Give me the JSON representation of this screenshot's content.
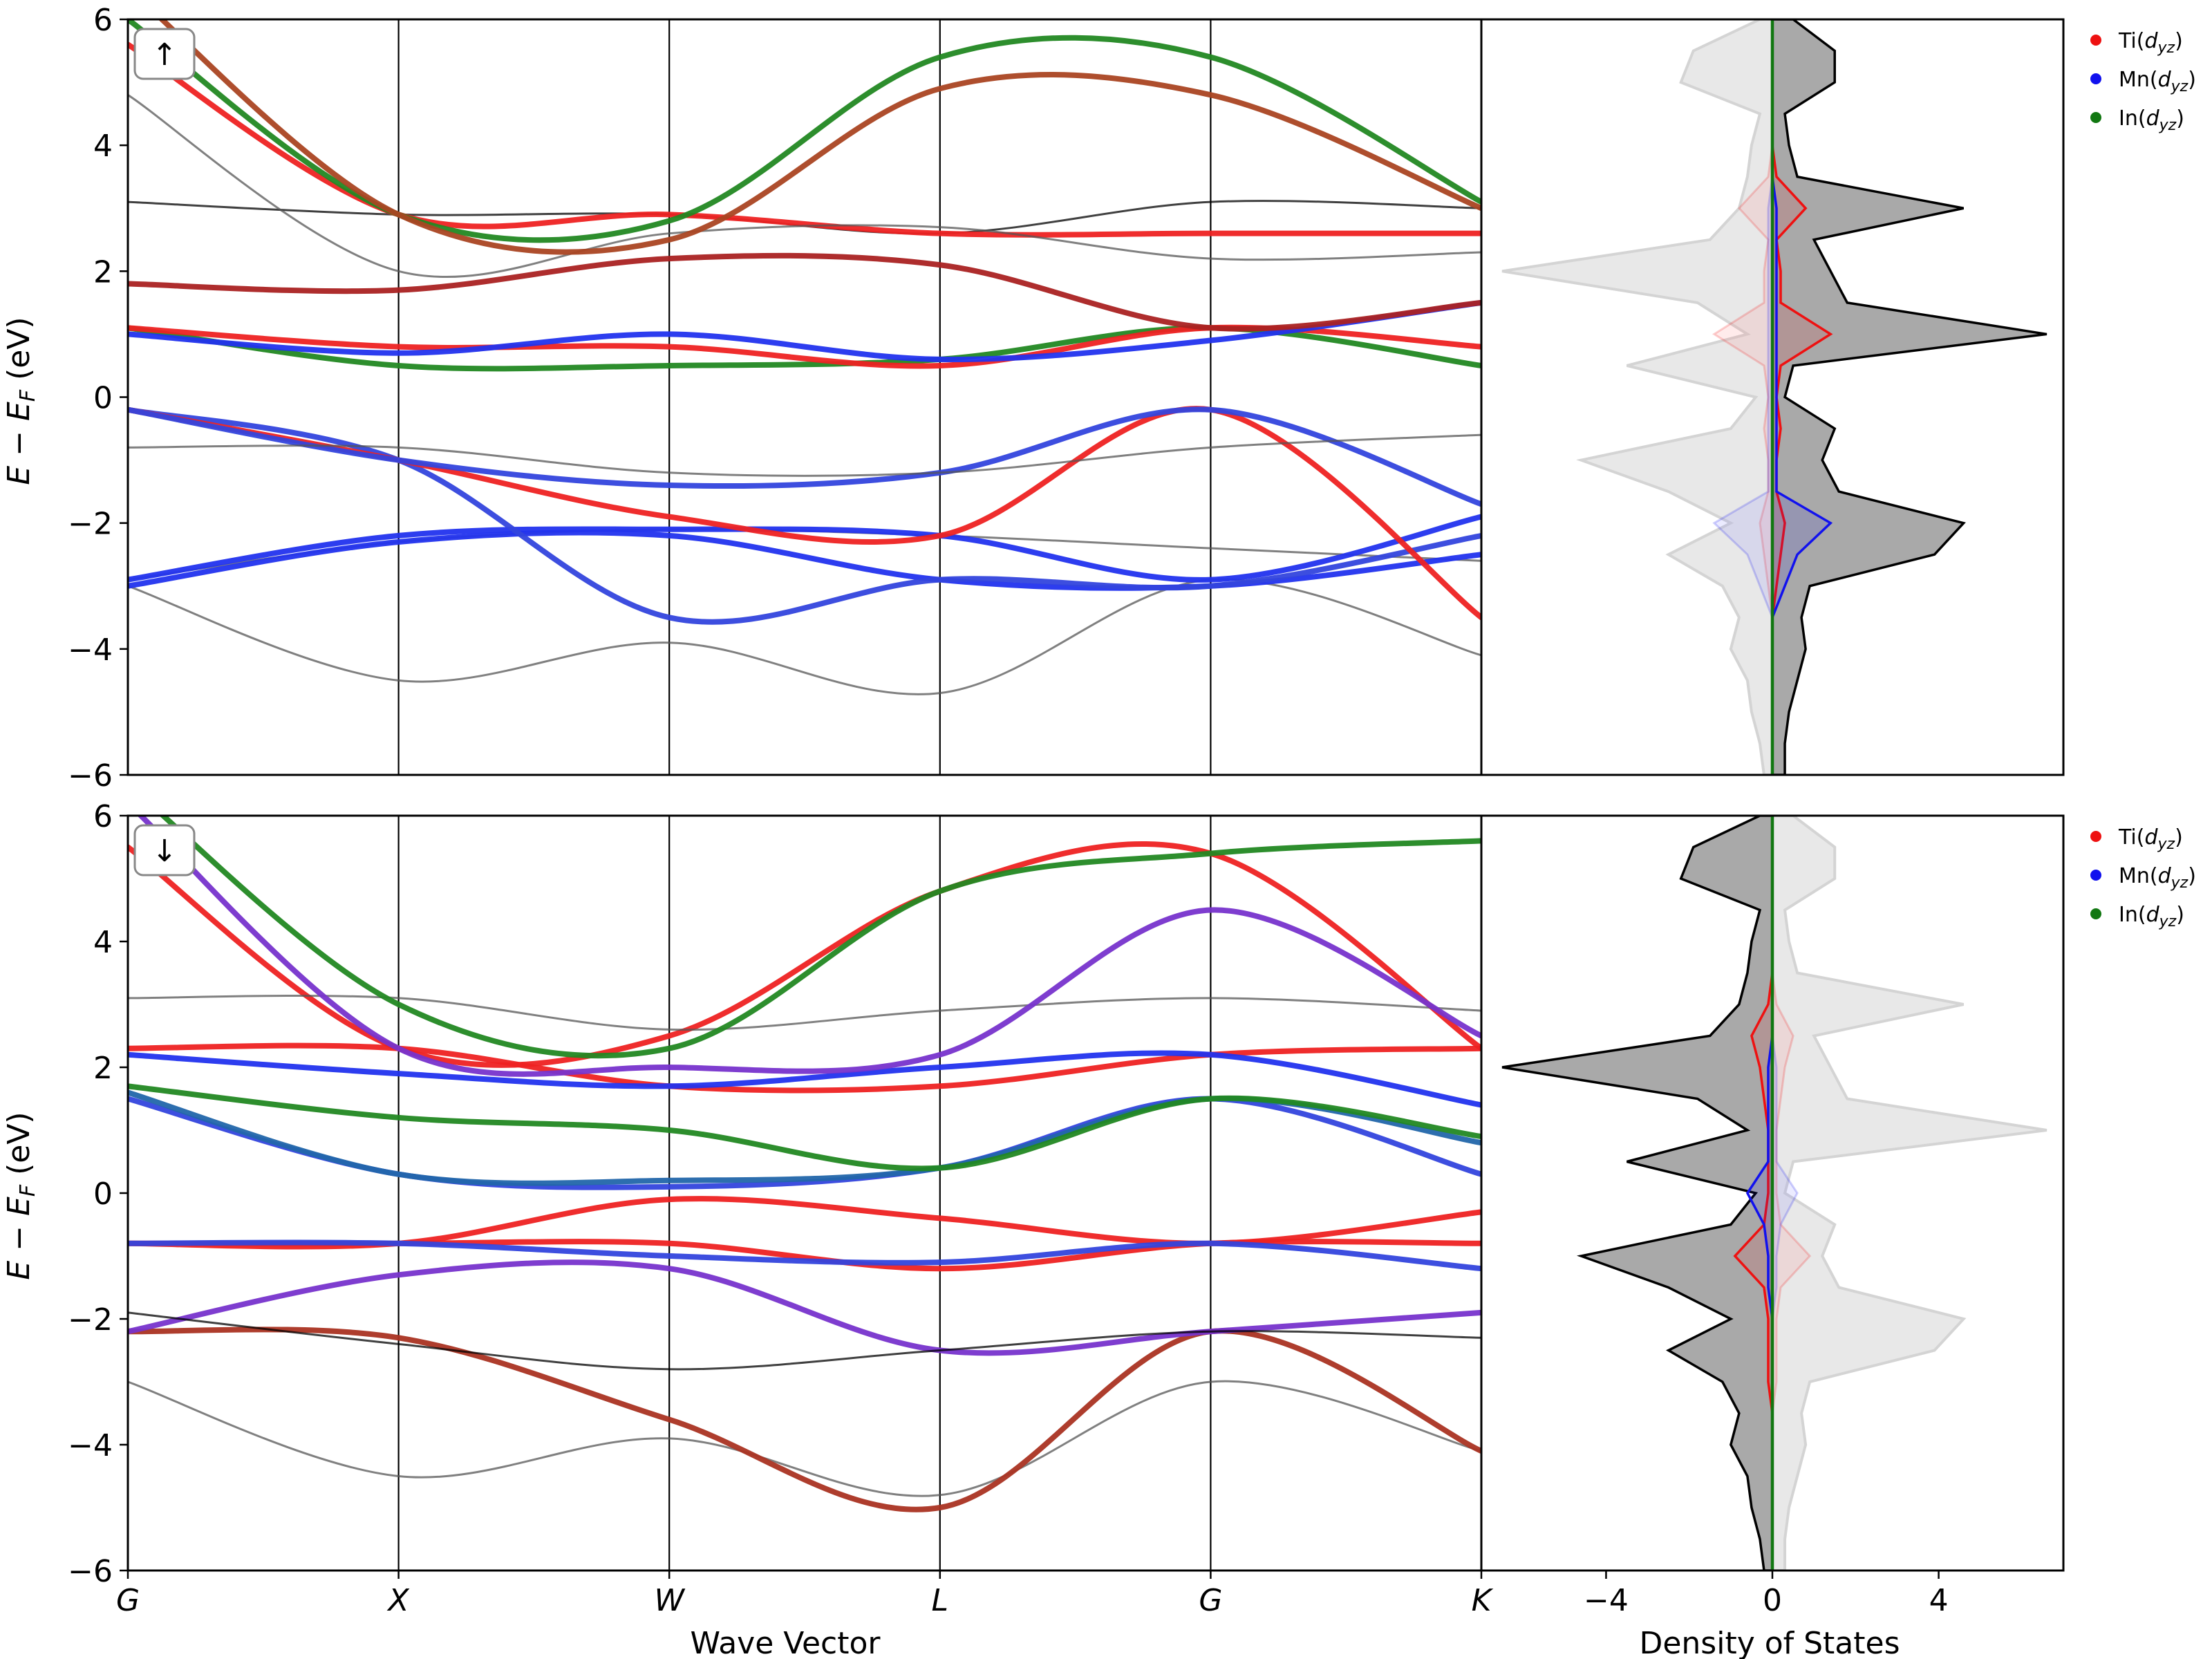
{
  "chart_data": [
    {
      "type": "line",
      "panel": "band-structure-spin-up",
      "spin_label": "↑",
      "xlabel": "",
      "ylabel": "E − E_F (eV)",
      "ylim": [
        -6,
        6
      ],
      "yticks": [
        -6,
        -4,
        -2,
        0,
        2,
        4,
        6
      ],
      "kpath": [
        "G",
        "X",
        "W",
        "L",
        "G",
        "K"
      ],
      "series": [
        {
          "color": "#555555",
          "x": [
            0,
            1,
            2,
            3,
            4,
            5
          ],
          "y": [
            -3.0,
            -4.5,
            -3.9,
            -4.7,
            -2.9,
            -4.1
          ]
        },
        {
          "color": "#555555",
          "x": [
            0,
            1,
            2,
            3,
            4,
            5
          ],
          "y": [
            -2.9,
            -2.3,
            -2.1,
            -2.2,
            -2.4,
            -2.6
          ]
        },
        {
          "color": "#2233ee",
          "x": [
            0,
            1,
            2,
            3,
            4,
            5
          ],
          "y": [
            -3.0,
            -2.3,
            -2.2,
            -2.9,
            -3.0,
            -2.5
          ]
        },
        {
          "color": "#2233ee",
          "x": [
            0,
            1,
            2,
            3,
            4,
            5
          ],
          "y": [
            -2.9,
            -2.2,
            -2.1,
            -2.2,
            -2.9,
            -1.9
          ]
        },
        {
          "color": "#3344dd",
          "x": [
            0,
            1,
            2,
            3,
            4,
            5
          ],
          "y": [
            -0.2,
            -1.0,
            -3.5,
            -2.9,
            -3.0,
            -2.2
          ]
        },
        {
          "color": "#ee2222",
          "x": [
            0,
            1,
            2,
            3,
            4,
            5
          ],
          "y": [
            -0.2,
            -1.0,
            -1.9,
            -2.2,
            -0.2,
            -3.5
          ]
        },
        {
          "color": "#3344dd",
          "x": [
            0,
            1,
            2,
            3,
            4,
            5
          ],
          "y": [
            -0.2,
            -1.0,
            -1.4,
            -1.2,
            -0.2,
            -1.7
          ]
        },
        {
          "color": "#555555",
          "x": [
            0,
            1,
            2,
            3,
            4,
            5
          ],
          "y": [
            -0.8,
            -0.8,
            -1.2,
            -1.2,
            -0.8,
            -0.6
          ]
        },
        {
          "color": "#228822",
          "x": [
            0,
            1,
            2,
            3,
            4,
            5
          ],
          "y": [
            1.1,
            0.5,
            0.5,
            0.6,
            1.1,
            0.5
          ]
        },
        {
          "color": "#ee2222",
          "x": [
            0,
            1,
            2,
            3,
            4,
            5
          ],
          "y": [
            1.1,
            0.8,
            0.8,
            0.5,
            1.1,
            0.8
          ]
        },
        {
          "color": "#2233ee",
          "x": [
            0,
            1,
            2,
            3,
            4,
            5
          ],
          "y": [
            1.0,
            0.7,
            1.0,
            0.6,
            0.9,
            1.5
          ]
        },
        {
          "color": "#aa2222",
          "x": [
            0,
            1,
            2,
            3,
            4,
            5
          ],
          "y": [
            1.8,
            1.7,
            2.2,
            2.1,
            1.1,
            1.5
          ]
        },
        {
          "color": "#000000",
          "x": [
            0,
            1,
            2,
            3,
            4,
            5
          ],
          "y": [
            3.1,
            2.9,
            2.9,
            2.6,
            3.1,
            3.0
          ]
        },
        {
          "color": "#ee2222",
          "x": [
            0,
            1,
            2,
            3,
            4,
            5
          ],
          "y": [
            5.6,
            2.9,
            2.9,
            2.6,
            2.6,
            2.6
          ]
        },
        {
          "color": "#555555",
          "x": [
            0,
            1,
            2,
            3,
            4,
            5
          ],
          "y": [
            4.8,
            2.0,
            2.6,
            2.7,
            2.2,
            2.3
          ]
        },
        {
          "color": "#228822",
          "x": [
            0,
            1,
            2,
            3,
            4,
            5
          ],
          "y": [
            6.0,
            2.9,
            2.8,
            5.4,
            5.4,
            3.1
          ]
        },
        {
          "color": "#aa4422",
          "x": [
            0,
            1,
            2,
            3,
            4,
            5
          ],
          "y": [
            6.5,
            2.9,
            2.5,
            4.9,
            4.8,
            3.0
          ]
        }
      ]
    },
    {
      "type": "area",
      "panel": "dos-spin-up",
      "xlabel": "",
      "ylim": [
        -6,
        6
      ],
      "xlim": [
        -7,
        7
      ],
      "xticks": [
        -4,
        0,
        4
      ],
      "legend_position": "top-right",
      "legend": [
        {
          "label": "Ti(d_yz)",
          "color": "#ee1111"
        },
        {
          "label": "Mn(d_yz)",
          "color": "#1111ee"
        },
        {
          "label": "In(d_yz)",
          "color": "#117711"
        }
      ],
      "energy": [
        -6,
        -5.5,
        -5,
        -4.5,
        -4,
        -3.5,
        -3,
        -2.5,
        -2,
        -1.5,
        -1,
        -0.5,
        0,
        0.5,
        1,
        1.5,
        2,
        2.5,
        3,
        3.5,
        4,
        4.5,
        5,
        5.5,
        6
      ],
      "total_up": [
        0.3,
        0.3,
        0.4,
        0.6,
        0.8,
        0.7,
        0.9,
        3.9,
        4.6,
        1.6,
        1.2,
        1.5,
        0.3,
        0.5,
        6.6,
        1.8,
        1.4,
        1.0,
        4.6,
        0.6,
        0.4,
        0.3,
        1.5,
        1.5,
        0.5
      ],
      "total_down_mirror": [
        -0.2,
        -0.3,
        -0.5,
        -0.6,
        -1.0,
        -0.8,
        -1.2,
        -2.5,
        -1.0,
        -2.5,
        -4.6,
        -1.0,
        -0.4,
        -3.5,
        -0.6,
        -1.8,
        -6.5,
        -1.5,
        -0.8,
        -0.6,
        -0.5,
        -0.3,
        -2.2,
        -1.9,
        -0.3
      ],
      "Ti": [
        0,
        0,
        0,
        0,
        0,
        0,
        0.1,
        0.2,
        0.3,
        0.1,
        0.1,
        0.2,
        0.1,
        0.2,
        1.4,
        0.2,
        0.2,
        0.1,
        0.8,
        0.1,
        0,
        0,
        0,
        0,
        0
      ],
      "Mn": [
        0,
        0,
        0,
        0,
        0,
        0,
        0.3,
        0.6,
        1.4,
        0.1,
        0.1,
        0.1,
        0.1,
        0.1,
        0.1,
        0.1,
        0.1,
        0.1,
        0.1,
        0,
        0,
        0,
        0,
        0,
        0
      ],
      "In": [
        0,
        0,
        0,
        0,
        0,
        0,
        0,
        0,
        0,
        0,
        0,
        0,
        0,
        0,
        0,
        0,
        0,
        0,
        0,
        0,
        0,
        0,
        0,
        0,
        0
      ]
    },
    {
      "type": "line",
      "panel": "band-structure-spin-down",
      "spin_label": "↓",
      "xlabel": "Wave Vector",
      "ylabel": "E − E_F (eV)",
      "ylim": [
        -6,
        6
      ],
      "yticks": [
        -6,
        -4,
        -2,
        0,
        2,
        4,
        6
      ],
      "xticks": [
        "G",
        "X",
        "W",
        "L",
        "G",
        "K"
      ],
      "series": [
        {
          "color": "#555555",
          "x": [
            0,
            1,
            2,
            3,
            4,
            5
          ],
          "y": [
            -3.0,
            -4.5,
            -3.9,
            -4.8,
            -3.0,
            -4.1
          ]
        },
        {
          "color": "#aa3322",
          "x": [
            0,
            1,
            2,
            3,
            4,
            5
          ],
          "y": [
            -2.2,
            -2.3,
            -3.6,
            -5.0,
            -2.2,
            -4.1
          ]
        },
        {
          "color": "#7733cc",
          "x": [
            0,
            1,
            2,
            3,
            4,
            5
          ],
          "y": [
            -2.2,
            -1.3,
            -1.2,
            -2.5,
            -2.2,
            -1.9
          ]
        },
        {
          "color": "#000000",
          "x": [
            0,
            1,
            2,
            3,
            4,
            5
          ],
          "y": [
            -1.9,
            -2.4,
            -2.8,
            -2.5,
            -2.2,
            -2.3
          ]
        },
        {
          "color": "#ee2222",
          "x": [
            0,
            1,
            2,
            3,
            4,
            5
          ],
          "y": [
            -0.8,
            -0.8,
            -0.8,
            -1.2,
            -0.8,
            -0.8
          ]
        },
        {
          "color": "#ee2222",
          "x": [
            0,
            1,
            2,
            3,
            4,
            5
          ],
          "y": [
            -0.8,
            -0.8,
            -0.1,
            -0.4,
            -0.8,
            -0.3
          ]
        },
        {
          "color": "#3344dd",
          "x": [
            0,
            1,
            2,
            3,
            4,
            5
          ],
          "y": [
            -0.8,
            -0.8,
            -1.0,
            -1.1,
            -0.8,
            -1.2
          ]
        },
        {
          "color": "#3344dd",
          "x": [
            0,
            1,
            2,
            3,
            4,
            5
          ],
          "y": [
            1.5,
            0.3,
            0.1,
            0.4,
            1.5,
            0.3
          ]
        },
        {
          "color": "#2266aa",
          "x": [
            0,
            1,
            2,
            3,
            4,
            5
          ],
          "y": [
            1.6,
            0.3,
            0.2,
            0.4,
            1.5,
            0.8
          ]
        },
        {
          "color": "#228822",
          "x": [
            0,
            1,
            2,
            3,
            4,
            5
          ],
          "y": [
            1.7,
            1.2,
            1.0,
            0.4,
            1.5,
            0.9
          ]
        },
        {
          "color": "#ee2222",
          "x": [
            0,
            1,
            2,
            3,
            4,
            5
          ],
          "y": [
            2.3,
            2.3,
            1.7,
            1.7,
            2.2,
            2.3
          ]
        },
        {
          "color": "#2233ee",
          "x": [
            0,
            1,
            2,
            3,
            4,
            5
          ],
          "y": [
            2.2,
            1.9,
            1.7,
            2.0,
            2.2,
            1.4
          ]
        },
        {
          "color": "#ee2222",
          "x": [
            0,
            1,
            2,
            3,
            4,
            5
          ],
          "y": [
            5.5,
            2.3,
            2.5,
            4.8,
            5.4,
            2.3
          ]
        },
        {
          "color": "#555555",
          "x": [
            0,
            1,
            2,
            3,
            4,
            5
          ],
          "y": [
            3.1,
            3.1,
            2.6,
            2.9,
            3.1,
            2.9
          ]
        },
        {
          "color": "#228822",
          "x": [
            0,
            1,
            2,
            3,
            4,
            5
          ],
          "y": [
            6.5,
            3.0,
            2.3,
            4.8,
            5.4,
            5.6
          ]
        },
        {
          "color": "#7733cc",
          "x": [
            0,
            1,
            2,
            3,
            4,
            5
          ],
          "y": [
            6.2,
            2.3,
            2.0,
            2.2,
            4.5,
            2.5
          ]
        }
      ]
    },
    {
      "type": "area",
      "panel": "dos-spin-down",
      "xlabel": "Density of States",
      "ylim": [
        -6,
        6
      ],
      "xlim": [
        -7,
        7
      ],
      "xticks": [
        -4,
        0,
        4
      ],
      "legend_position": "top-right",
      "legend": [
        {
          "label": "Ti(d_yz)",
          "color": "#ee1111"
        },
        {
          "label": "Mn(d_yz)",
          "color": "#1111ee"
        },
        {
          "label": "In(d_yz)",
          "color": "#117711"
        }
      ],
      "energy": [
        -6,
        -5.5,
        -5,
        -4.5,
        -4,
        -3.5,
        -3,
        -2.5,
        -2,
        -1.5,
        -1,
        -0.5,
        0,
        0.5,
        1,
        1.5,
        2,
        2.5,
        3,
        3.5,
        4,
        4.5,
        5,
        5.5,
        6
      ],
      "total_down": [
        -0.2,
        -0.3,
        -0.5,
        -0.6,
        -1.0,
        -0.8,
        -1.2,
        -2.5,
        -1.0,
        -2.5,
        -4.6,
        -1.0,
        -0.4,
        -3.5,
        -0.6,
        -1.8,
        -6.5,
        -1.5,
        -0.8,
        -0.6,
        -0.5,
        -0.3,
        -2.2,
        -1.9,
        -0.3
      ],
      "total_up_mirror": [
        0.3,
        0.3,
        0.4,
        0.6,
        0.8,
        0.7,
        0.9,
        3.9,
        4.6,
        1.6,
        1.2,
        1.5,
        0.3,
        0.5,
        6.6,
        1.8,
        1.4,
        1.0,
        4.6,
        0.6,
        0.4,
        0.3,
        1.5,
        1.5,
        0.5
      ],
      "Ti": [
        0,
        0,
        0,
        0,
        0,
        0,
        -0.1,
        -0.1,
        -0.1,
        -0.2,
        -0.9,
        -0.2,
        -0.1,
        -0.1,
        -0.1,
        -0.2,
        -0.3,
        -0.5,
        -0.1,
        0,
        0,
        0,
        0,
        0,
        0
      ],
      "Mn": [
        0,
        0,
        0,
        0,
        0,
        0,
        0,
        0,
        0,
        -0.1,
        -0.1,
        -0.2,
        -0.6,
        -0.1,
        -0.1,
        -0.1,
        -0.1,
        0,
        0,
        0,
        0,
        0,
        0,
        0,
        0
      ],
      "In": [
        0,
        0,
        0,
        0,
        0,
        0,
        0,
        0,
        0,
        0,
        0,
        0,
        0,
        0,
        0,
        0,
        0,
        0,
        0,
        0,
        0,
        0,
        0,
        0,
        0
      ]
    }
  ]
}
